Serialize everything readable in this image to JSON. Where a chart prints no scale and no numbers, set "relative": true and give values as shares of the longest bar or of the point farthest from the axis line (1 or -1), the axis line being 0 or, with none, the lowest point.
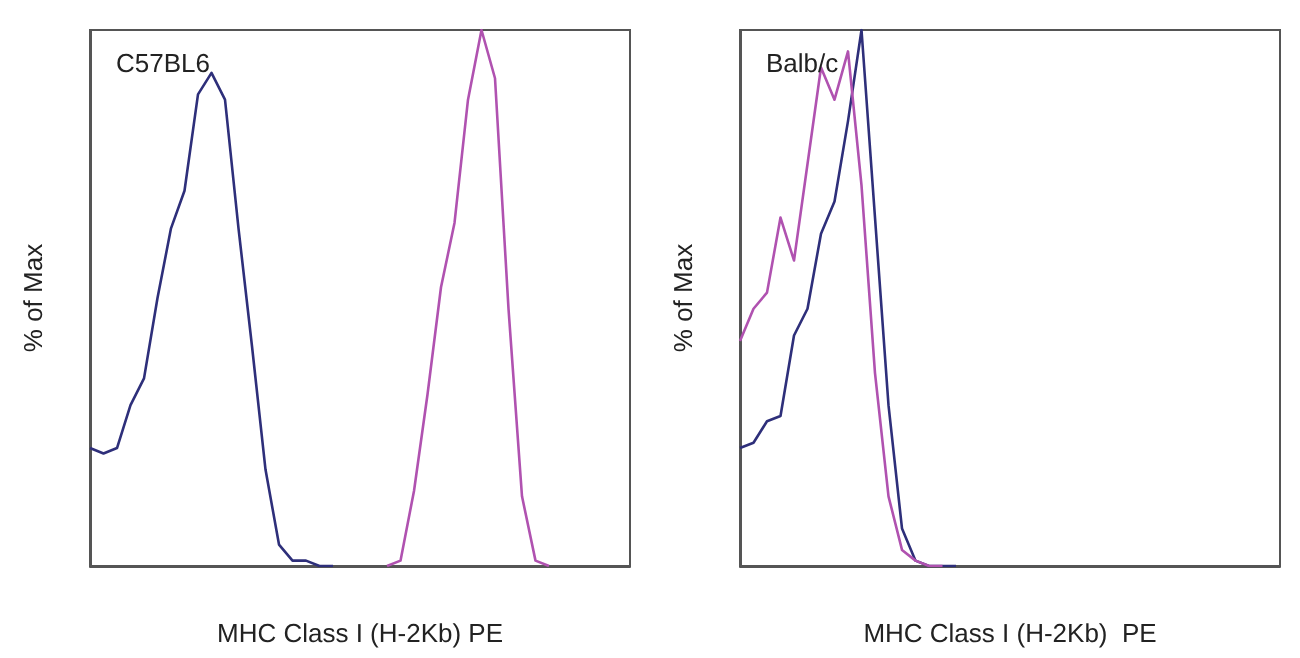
{
  "chart_data": [
    {
      "type": "line",
      "title": "C57BL6",
      "xlabel": "MHC Class I (H-2Kb) PE",
      "ylabel": "% of Max",
      "relative": true,
      "tick_labels": false,
      "marker": "none",
      "categories": [
        null,
        null,
        null,
        null,
        null,
        null,
        null,
        null,
        null,
        null,
        null,
        null,
        null,
        null,
        null,
        null,
        null,
        null,
        null,
        null,
        null,
        null,
        null,
        null,
        null,
        null,
        null,
        null,
        null,
        null,
        null,
        null,
        null,
        null,
        null,
        null,
        null,
        null,
        null,
        null,
        null
      ],
      "series": [
        {
          "color": "#2e2f7a",
          "values": [
            0.22,
            0.21,
            0.22,
            0.3,
            0.35,
            0.5,
            0.63,
            0.7,
            0.88,
            0.92,
            0.87,
            0.63,
            0.41,
            0.18,
            0.04,
            0.01,
            0.01,
            0,
            0,
            null,
            null,
            null,
            null,
            null,
            null,
            null,
            null,
            null,
            null,
            null,
            null,
            null,
            null,
            null,
            null,
            null,
            null,
            null,
            null,
            null,
            null
          ]
        },
        {
          "color": "#b052b0",
          "values": [
            null,
            null,
            null,
            null,
            null,
            null,
            null,
            null,
            null,
            null,
            null,
            null,
            null,
            null,
            null,
            null,
            null,
            null,
            null,
            null,
            null,
            null,
            0,
            0.01,
            0.14,
            0.32,
            0.52,
            0.64,
            0.87,
            1.0,
            0.91,
            0.48,
            0.13,
            0.01,
            0,
            null,
            null,
            null,
            null,
            null,
            null
          ]
        }
      ]
    },
    {
      "type": "line",
      "title": "Balb/c",
      "xlabel": "MHC Class I (H-2Kb)  PE",
      "ylabel": "% of Max",
      "relative": true,
      "tick_labels": false,
      "marker": "none",
      "categories": [
        null,
        null,
        null,
        null,
        null,
        null,
        null,
        null,
        null,
        null,
        null,
        null,
        null,
        null,
        null,
        null,
        null,
        null,
        null,
        null,
        null,
        null,
        null,
        null,
        null,
        null,
        null,
        null,
        null,
        null,
        null,
        null,
        null,
        null,
        null,
        null,
        null,
        null,
        null,
        null,
        null
      ],
      "series": [
        {
          "color": "#2e2f7a",
          "values": [
            0.22,
            0.23,
            0.27,
            0.28,
            0.43,
            0.48,
            0.62,
            0.68,
            0.83,
            1.0,
            0.65,
            0.3,
            0.07,
            0.01,
            0,
            0,
            0,
            null,
            null,
            null,
            null,
            null,
            null,
            null,
            null,
            null,
            null,
            null,
            null,
            null,
            null,
            null,
            null,
            null,
            null,
            null,
            null,
            null,
            null,
            null,
            null
          ]
        },
        {
          "color": "#b052b0",
          "values": [
            0.42,
            0.48,
            0.51,
            0.65,
            0.57,
            0.75,
            0.93,
            0.87,
            0.96,
            0.71,
            0.36,
            0.13,
            0.03,
            0.01,
            0,
            0,
            null,
            null,
            null,
            null,
            null,
            null,
            null,
            null,
            null,
            null,
            null,
            null,
            null,
            null,
            null,
            null,
            null,
            null,
            null,
            null,
            null,
            null,
            null,
            null,
            null
          ]
        }
      ]
    }
  ]
}
